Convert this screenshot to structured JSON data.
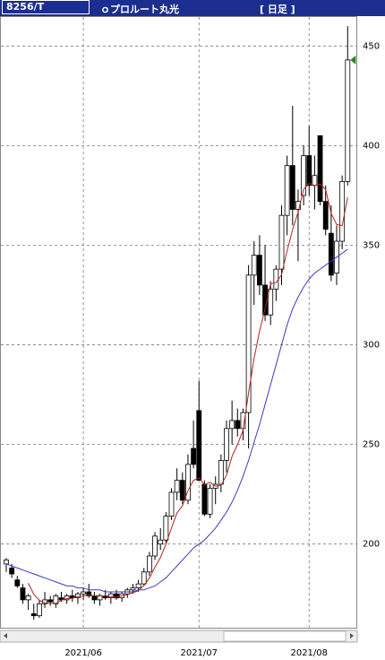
{
  "chart_data": {
    "type": "candlestick",
    "code": "8256/T",
    "title": "ｏプロルート丸光",
    "period": "[ 日足 ]",
    "categories": [
      null,
      null,
      null,
      null,
      null,
      null,
      null,
      null,
      null,
      null,
      null,
      null,
      null,
      null,
      null,
      null,
      null,
      null,
      null,
      null,
      null,
      null,
      null,
      null,
      null,
      null,
      null,
      null,
      null,
      null,
      null,
      null,
      null,
      null,
      null,
      null,
      null,
      null,
      null,
      null,
      null,
      null,
      null,
      null,
      null,
      null,
      null,
      null,
      null,
      null,
      null,
      null,
      null,
      null,
      null,
      null,
      null,
      null,
      null,
      null,
      null,
      null,
      null
    ],
    "open": [
      190,
      188,
      182,
      178,
      172,
      165,
      164,
      170,
      172,
      170,
      173,
      172,
      174,
      173,
      175,
      176,
      174,
      172,
      174,
      173,
      175,
      173,
      175,
      177,
      178,
      180,
      186,
      194,
      200,
      202,
      214,
      226,
      232,
      222,
      248,
      267,
      230,
      215,
      228,
      230,
      242,
      258,
      262,
      258,
      266,
      335,
      345,
      330,
      315,
      328,
      338,
      365,
      390,
      368,
      375,
      395,
      380,
      405,
      372,
      356,
      336,
      352,
      382
    ],
    "high": [
      193,
      190,
      184,
      180,
      175,
      170,
      172,
      176,
      174,
      175,
      176,
      175,
      177,
      176,
      178,
      180,
      176,
      175,
      177,
      176,
      177,
      176,
      178,
      180,
      182,
      188,
      196,
      206,
      208,
      216,
      228,
      238,
      236,
      245,
      262,
      282,
      232,
      230,
      234,
      245,
      262,
      272,
      268,
      268,
      340,
      352,
      355,
      350,
      332,
      340,
      370,
      395,
      420,
      378,
      400,
      410,
      395,
      405,
      380,
      370,
      360,
      385,
      460
    ],
    "low": [
      186,
      183,
      178,
      170,
      167,
      162,
      163,
      168,
      169,
      168,
      171,
      170,
      171,
      170,
      172,
      173,
      170,
      169,
      172,
      170,
      172,
      171,
      173,
      175,
      176,
      179,
      184,
      192,
      197,
      200,
      212,
      222,
      220,
      220,
      238,
      232,
      214,
      213,
      220,
      226,
      236,
      250,
      254,
      252,
      248,
      320,
      325,
      312,
      310,
      322,
      330,
      355,
      360,
      342,
      370,
      375,
      368,
      370,
      355,
      332,
      330,
      348,
      380
    ],
    "close": [
      192,
      185,
      179,
      172,
      174,
      164,
      170,
      172,
      171,
      174,
      172,
      174,
      173,
      175,
      176,
      174,
      172,
      174,
      173,
      175,
      173,
      175,
      177,
      178,
      180,
      186,
      194,
      204,
      202,
      214,
      226,
      232,
      222,
      240,
      240,
      232,
      215,
      228,
      230,
      242,
      258,
      262,
      258,
      266,
      335,
      345,
      330,
      315,
      328,
      338,
      365,
      390,
      368,
      372,
      395,
      380,
      385,
      372,
      358,
      335,
      352,
      382,
      443
    ],
    "up_color": "#ffffff",
    "down_color": "#000000",
    "moving_averages": [
      {
        "color": "#b22222",
        "values": [
          null,
          null,
          null,
          null,
          180.4,
          174.8,
          171.8,
          170.4,
          170.2,
          170.2,
          171.8,
          172.6,
          172.8,
          173.6,
          174,
          174.4,
          174,
          174.2,
          173.8,
          173.6,
          173.4,
          174,
          174.6,
          175.6,
          176.6,
          179.2,
          183,
          188.4,
          193.2,
          200,
          208,
          215.6,
          219.2,
          226.8,
          232,
          233.2,
          229.8,
          231,
          229,
          229.4,
          234.6,
          244,
          250,
          257.2,
          275.8,
          293.2,
          306.8,
          318.2,
          330.6,
          331.2,
          335.2,
          347.2,
          357.8,
          366.6,
          378,
          381,
          380,
          380.8,
          378,
          366,
          360.4,
          359.8,
          374
        ]
      },
      {
        "color": "#3b3bbf",
        "values": [
          190,
          189,
          188,
          187,
          186,
          185,
          184,
          183,
          182,
          181,
          180,
          179,
          179,
          178,
          178,
          177,
          177,
          177,
          176,
          176,
          176,
          176,
          176,
          176,
          177,
          177,
          178,
          179,
          181,
          183,
          186,
          189,
          192,
          195,
          198,
          200,
          202,
          205,
          208,
          212,
          216,
          221,
          227,
          234,
          242,
          251,
          260,
          270,
          280,
          290,
          300,
          310,
          318,
          324,
          329,
          333,
          336,
          338,
          340,
          342,
          344,
          346,
          348
        ]
      }
    ],
    "ylim": [
      158,
      465
    ],
    "yticks": [
      200,
      250,
      300,
      350,
      400,
      450
    ],
    "grid": true,
    "xticks": [
      {
        "value": 14,
        "label": "2021/06"
      },
      {
        "value": 35,
        "label": "2021/07"
      },
      {
        "value": 55,
        "label": "2021/08"
      }
    ]
  }
}
